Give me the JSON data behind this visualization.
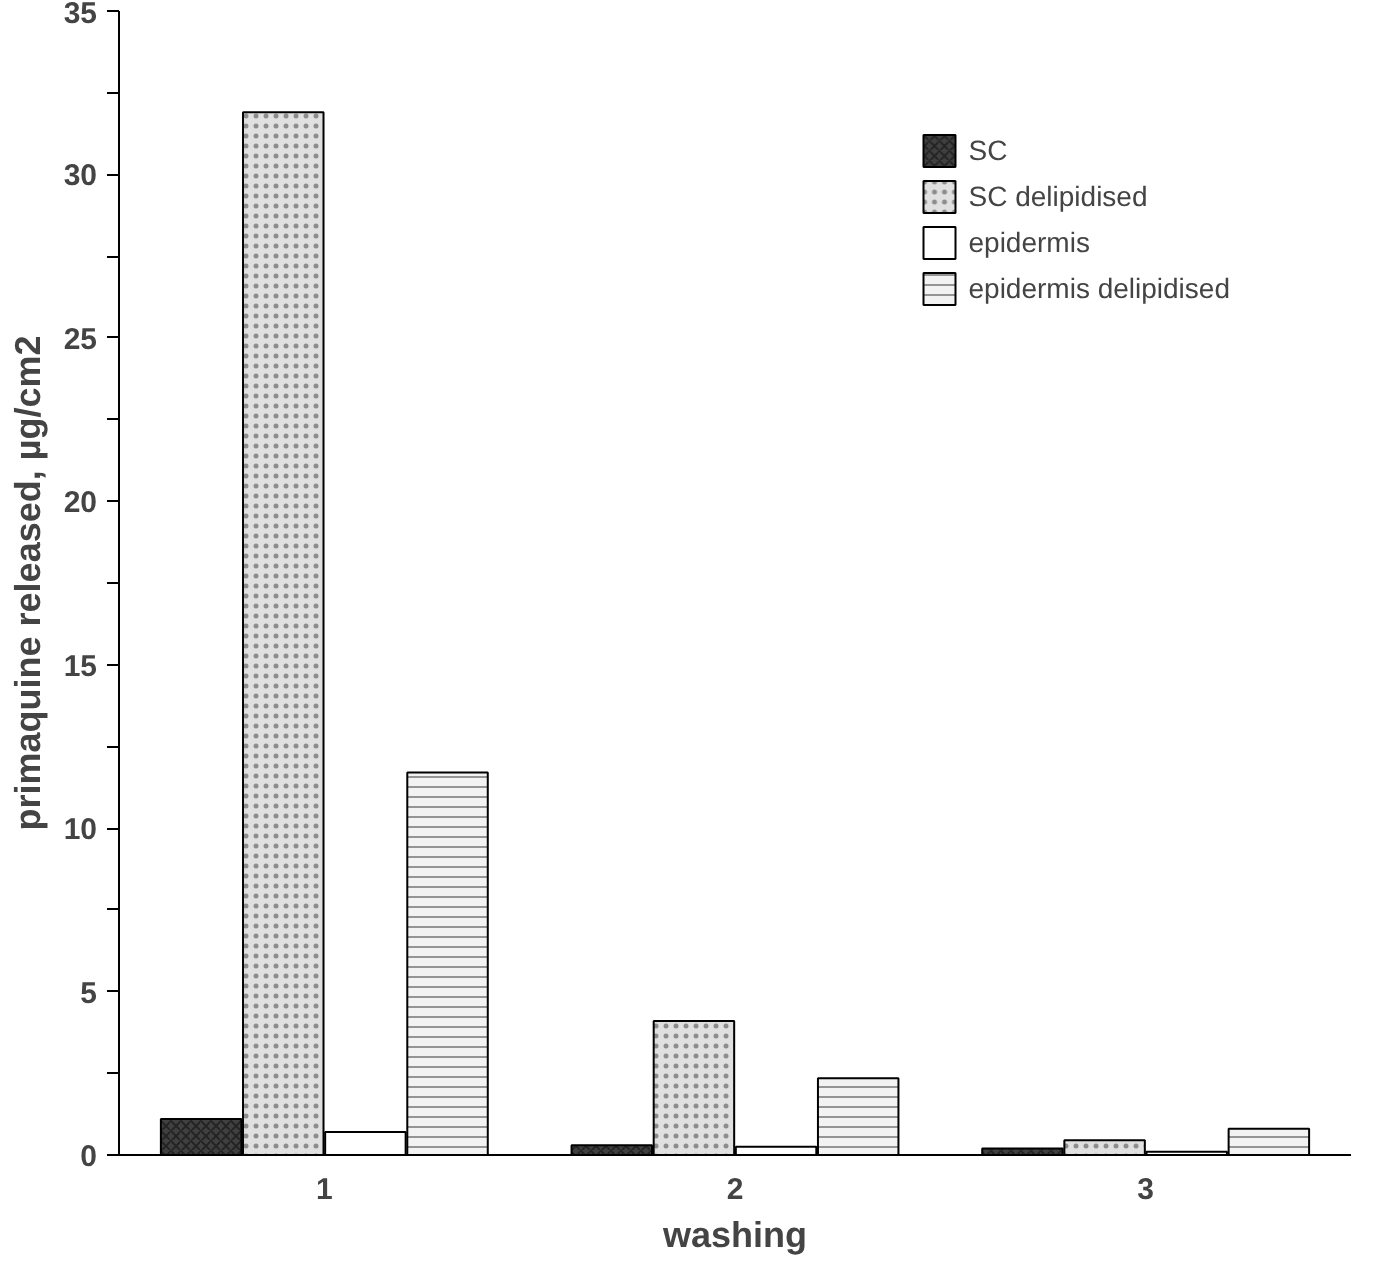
{
  "chart_data": {
    "type": "bar",
    "xlabel": "washing",
    "ylabel": "primaquine released, µg/cm2",
    "categories": [
      "1",
      "2",
      "3"
    ],
    "series": [
      {
        "name": "SC",
        "color": "#404040",
        "values": [
          1.1,
          0.3,
          0.2
        ]
      },
      {
        "name": "SC delipidised",
        "color": "#e0e0e0",
        "values": [
          31.9,
          4.1,
          0.45
        ]
      },
      {
        "name": "epidermis",
        "color": "#ffffff",
        "values": [
          0.7,
          0.25,
          0.1
        ]
      },
      {
        "name": "epidermis delipidised",
        "color": "#f2f2f2",
        "values": [
          11.7,
          2.35,
          0.8
        ]
      }
    ],
    "ylim": [
      0,
      35
    ],
    "yticks": [
      0,
      {
        "value": 2.5,
        "label": null
      },
      5,
      {
        "value": 7.5,
        "label": null
      },
      10,
      {
        "value": 12.5,
        "label": null
      },
      15,
      {
        "value": 17.5,
        "label": null
      },
      20,
      {
        "value": 22.5,
        "label": null
      },
      25,
      {
        "value": 27.5,
        "label": null
      },
      30,
      {
        "value": 32.5,
        "label": null
      },
      35
    ],
    "grid": false,
    "legend": "top right"
  }
}
